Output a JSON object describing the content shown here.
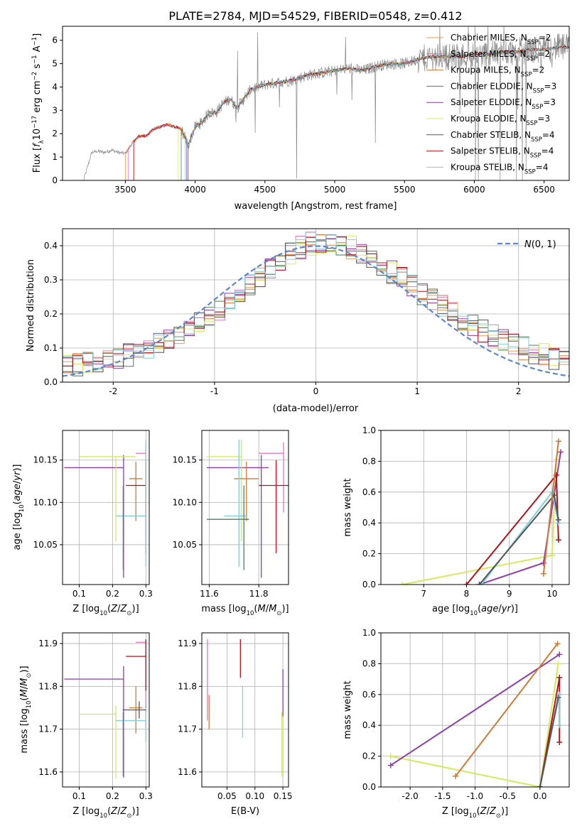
{
  "title": "PLATE=2784, MJD=54529, FIBERID=0548, z=0.412",
  "colors": {
    "chabrier_miles": "#ee9a4d",
    "salpeter_miles": "#e377c2",
    "kroupa_miles": "#d07a34",
    "chabrier_elodie": "#4e7f5a",
    "salpeter_elodie": "#8e3ea8",
    "kroupa_elodie": "#d4ea5a",
    "chabrier_stelib": "#555555",
    "salpeter_stelib": "#b0141a",
    "kroupa_stelib": "#7fcfdc",
    "data": "#888888",
    "normal": "#5b86d6",
    "grid": "#b0b0b0"
  },
  "chart_data": [
    {
      "id": "spectrum",
      "type": "line",
      "title": "PLATE=2784, MJD=54529, FIBERID=0548, z=0.412",
      "xlabel": "wavelength [Angstrom, rest frame]",
      "ylabel": "Flux [f_λ 10^-17 erg cm^-2 s^-1 A^-1]",
      "xlim": [
        3050,
        6680
      ],
      "ylim": [
        0,
        6.6
      ],
      "xticks": [
        3500,
        4000,
        4500,
        5000,
        5500,
        6000,
        6500
      ],
      "yticks": [
        0,
        1,
        2,
        3,
        4,
        5,
        6
      ],
      "grid": false,
      "legend_position": "top-right",
      "legend": [
        {
          "main": "Chabrier MILES, N",
          "sub": "SSP",
          "end": "=2",
          "color_key": "chabrier_miles"
        },
        {
          "main": "Salpeter MILES, N",
          "sub": "SSP",
          "end": "=2",
          "color_key": "salpeter_miles"
        },
        {
          "main": "Kroupa MILES, N",
          "sub": "SSP",
          "end": "=2",
          "color_key": "kroupa_miles"
        },
        {
          "main": "Chabrier ELODIE, N",
          "sub": "SSP",
          "end": "=3",
          "color_key": "chabrier_elodie"
        },
        {
          "main": "Salpeter ELODIE, N",
          "sub": "SSP",
          "end": "=3",
          "color_key": "salpeter_elodie"
        },
        {
          "main": "Kroupa ELODIE, N",
          "sub": "SSP",
          "end": "=3",
          "color_key": "kroupa_elodie"
        },
        {
          "main": "Chabrier STELIB, N",
          "sub": "SSP",
          "end": "=4",
          "color_key": "chabrier_stelib"
        },
        {
          "main": "Salpeter STELIB, N",
          "sub": "SSP",
          "end": "=4",
          "color_key": "salpeter_stelib"
        },
        {
          "main": "Kroupa STELIB, N",
          "sub": "SSP",
          "end": "=4",
          "color_key": "kroupa_stelib"
        }
      ],
      "continuum": [
        [
          3200,
          0
        ],
        [
          3260,
          1.2
        ],
        [
          3300,
          1.25
        ],
        [
          3350,
          1.2
        ],
        [
          3400,
          1.3
        ],
        [
          3450,
          1.2
        ],
        [
          3500,
          1.15
        ],
        [
          3550,
          1.6
        ],
        [
          3600,
          1.9
        ],
        [
          3650,
          1.9
        ],
        [
          3700,
          2.2
        ],
        [
          3750,
          2.3
        ],
        [
          3800,
          2.4
        ],
        [
          3850,
          2.3
        ],
        [
          3900,
          2.2
        ],
        [
          3950,
          1.5
        ],
        [
          4000,
          2.3
        ],
        [
          4050,
          2.5
        ],
        [
          4100,
          2.9
        ],
        [
          4150,
          2.9
        ],
        [
          4200,
          3.3
        ],
        [
          4250,
          3.5
        ],
        [
          4300,
          3.1
        ],
        [
          4350,
          3.5
        ],
        [
          4400,
          3.9
        ],
        [
          4500,
          4.1
        ],
        [
          4600,
          4.2
        ],
        [
          4700,
          4.3
        ],
        [
          4800,
          4.5
        ],
        [
          4900,
          4.6
        ],
        [
          5000,
          4.7
        ],
        [
          5100,
          4.8
        ],
        [
          5200,
          4.7
        ],
        [
          5300,
          4.9
        ],
        [
          5400,
          5.0
        ],
        [
          5500,
          5.0
        ],
        [
          5600,
          5.2
        ],
        [
          5700,
          5.3
        ],
        [
          5800,
          5.3
        ],
        [
          5900,
          5.3
        ],
        [
          6000,
          5.4
        ],
        [
          6100,
          5.4
        ],
        [
          6200,
          5.5
        ],
        [
          6300,
          5.5
        ],
        [
          6400,
          5.6
        ],
        [
          6500,
          5.6
        ],
        [
          6600,
          5.7
        ]
      ],
      "model_start_wavelength": [
        3500,
        3520,
        3560,
        3900,
        3940,
        3880,
        3950,
        3560,
        3930
      ]
    },
    {
      "id": "residuals",
      "type": "histogram",
      "xlabel": "(data-model)/error",
      "ylabel": "Normed distribution",
      "xlim": [
        -2.5,
        2.5
      ],
      "ylim": [
        0,
        0.45
      ],
      "xticks": [
        -2,
        -1,
        0,
        1,
        2
      ],
      "yticks": [
        0.0,
        0.1,
        0.2,
        0.3,
        0.4
      ],
      "bin_width": 0.1,
      "grid": true,
      "legend_position": "top-right",
      "legend": [
        {
          "label": "N(0, 1)",
          "color_key": "normal",
          "style": "dashed"
        }
      ]
    },
    {
      "id": "age_vs_z",
      "type": "errorbar",
      "xlabel": "Z [log10(Z/Z_sun)]",
      "ylabel": "age [log10(age/yr)]",
      "xlim": [
        0.05,
        0.31
      ],
      "ylim": [
        10.003,
        10.185
      ],
      "xticks": [
        0.1,
        0.2,
        0.3
      ],
      "yticks": [
        10.05,
        10.1,
        10.15
      ],
      "grid": true,
      "points": [
        {
          "color_key": "salpeter_elodie",
          "x": 0.233,
          "xerr": [
            0.178,
            0
          ],
          "y": 10.141,
          "yerr": [
            0.13,
            0.015
          ]
        },
        {
          "color_key": "kroupa_elodie",
          "x": 0.21,
          "xerr": [
            0.11,
            0.06
          ],
          "y": 10.154,
          "yerr": [
            0.1,
            0
          ]
        },
        {
          "color_key": "salpeter_miles",
          "x": 0.3,
          "xerr": [
            0.03,
            0
          ],
          "y": 10.158,
          "yerr": [
            0.07,
            0.013
          ]
        },
        {
          "color_key": "kroupa_miles",
          "x": 0.27,
          "xerr": [
            0.02,
            0.02
          ],
          "y": 10.128,
          "yerr": [
            0.05,
            0.02
          ]
        },
        {
          "color_key": "salpeter_stelib",
          "x": 0.3,
          "xerr": [
            0.06,
            0
          ],
          "y": 10.12,
          "yerr": [
            0.08,
            0.03
          ]
        },
        {
          "color_key": "kroupa_stelib",
          "x": 0.3,
          "xerr": [
            0.09,
            0
          ],
          "y": 10.084,
          "yerr": [
            0.06,
            0.09
          ]
        },
        {
          "color_key": "chabrier_elodie",
          "x": 0.232,
          "xerr": [
            0,
            0
          ],
          "y": 10.08,
          "yerr": [
            0.06,
            0.04
          ]
        }
      ]
    },
    {
      "id": "age_vs_mass",
      "type": "errorbar",
      "xlabel": "mass [log10(M/M_sun)]",
      "ylabel": "",
      "xlim": [
        11.57,
        11.92
      ],
      "ylim": [
        10.003,
        10.185
      ],
      "xticks": [
        11.6,
        11.8
      ],
      "yticks": [
        10.05,
        10.1,
        10.15
      ],
      "grid": true,
      "points": [
        {
          "color_key": "salpeter_elodie",
          "x": 11.81,
          "xerr": [
            0.22,
            0.03
          ],
          "y": 10.141,
          "yerr": [
            0.13,
            0.015
          ]
        },
        {
          "color_key": "kroupa_elodie",
          "x": 11.73,
          "xerr": [
            0.14,
            0
          ],
          "y": 10.154,
          "yerr": [
            0.1,
            0.02
          ]
        },
        {
          "color_key": "salpeter_miles",
          "x": 11.9,
          "xerr": [
            0.1,
            0
          ],
          "y": 10.158,
          "yerr": [
            0.07,
            0.013
          ]
        },
        {
          "color_key": "kroupa_miles",
          "x": 11.75,
          "xerr": [
            0.05,
            0.05
          ],
          "y": 10.128,
          "yerr": [
            0.05,
            0.02
          ]
        },
        {
          "color_key": "salpeter_stelib",
          "x": 11.87,
          "xerr": [
            0.07,
            0.05
          ],
          "y": 10.12,
          "yerr": [
            0.08,
            0.03
          ]
        },
        {
          "color_key": "kroupa_stelib",
          "x": 11.72,
          "xerr": [
            0.06,
            0.03
          ],
          "y": 10.084,
          "yerr": [
            0.06,
            0.09
          ]
        },
        {
          "color_key": "chabrier_elodie",
          "x": 11.74,
          "xerr": [
            0.15,
            0.02
          ],
          "y": 10.08,
          "yerr": [
            0.06,
            0.04
          ]
        }
      ]
    },
    {
      "id": "weight_vs_age",
      "type": "line",
      "xlabel": "age [log10(age/yr)]",
      "ylabel": "mass weight",
      "xlim": [
        6.0,
        10.4
      ],
      "ylim": [
        0,
        1.0
      ],
      "xticks": [
        7,
        8,
        9,
        10
      ],
      "yticks": [
        0.0,
        0.2,
        0.4,
        0.6,
        0.8,
        1.0
      ],
      "grid": true,
      "series": [
        {
          "color_key": "kroupa_elodie",
          "points": [
            [
              6.5,
              0.0
            ],
            [
              10.0,
              0.19
            ],
            [
              10.1,
              0.81
            ]
          ]
        },
        {
          "color_key": "salpeter_elodie",
          "points": [
            [
              8.3,
              0.0
            ],
            [
              9.8,
              0.14
            ],
            [
              10.2,
              0.86
            ]
          ]
        },
        {
          "color_key": "salpeter_stelib",
          "points": [
            [
              8.0,
              0.0
            ],
            [
              10.1,
              0.71
            ],
            [
              10.15,
              0.29
            ]
          ]
        },
        {
          "color_key": "kroupa_stelib",
          "points": [
            [
              8.35,
              0.0
            ],
            [
              10.0,
              0.6
            ],
            [
              10.15,
              0.4
            ]
          ]
        },
        {
          "color_key": "chabrier_stelib",
          "points": [
            [
              8.3,
              0.0
            ],
            [
              10.05,
              0.58
            ],
            [
              10.15,
              0.42
            ]
          ]
        },
        {
          "color_key": "kroupa_miles",
          "points": [
            [
              9.8,
              0.07
            ],
            [
              10.15,
              0.93
            ]
          ]
        }
      ]
    },
    {
      "id": "mass_vs_z",
      "type": "errorbar",
      "xlabel": "Z [log10(Z/Z_sun)]",
      "ylabel": "mass [log10(M/M_sun)]",
      "xlim": [
        0.05,
        0.31
      ],
      "ylim": [
        11.565,
        11.925
      ],
      "xticks": [
        0.1,
        0.2,
        0.3
      ],
      "yticks": [
        11.6,
        11.7,
        11.8,
        11.9
      ],
      "grid": true,
      "points": [
        {
          "color_key": "salpeter_elodie",
          "x": 0.233,
          "xerr": [
            0.178,
            0
          ],
          "y": 11.817,
          "yerr": [
            0.23,
            0.03
          ]
        },
        {
          "color_key": "kroupa_elodie",
          "x": 0.21,
          "xerr": [
            0.11,
            0
          ],
          "y": 11.735,
          "yerr": [
            0.15,
            0.02
          ]
        },
        {
          "color_key": "salpeter_miles",
          "x": 0.3,
          "xerr": [
            0.03,
            0
          ],
          "y": 11.903,
          "yerr": [
            0.2,
            0
          ]
        },
        {
          "color_key": "kroupa_miles",
          "x": 0.27,
          "xerr": [
            0.02,
            0.02
          ],
          "y": 11.75,
          "yerr": [
            0.06,
            0.05
          ]
        },
        {
          "color_key": "salpeter_stelib",
          "x": 0.3,
          "xerr": [
            0.06,
            0
          ],
          "y": 11.87,
          "yerr": [
            0.08,
            0.04
          ]
        },
        {
          "color_key": "kroupa_stelib",
          "x": 0.3,
          "xerr": [
            0.09,
            0
          ],
          "y": 11.72,
          "yerr": [
            0.05,
            0.03
          ]
        },
        {
          "color_key": "chabrier_elodie",
          "x": 0.232,
          "xerr": [
            0,
            0
          ],
          "y": 11.74,
          "yerr": [
            0.15,
            0
          ]
        },
        {
          "color_key": "chabrier_stelib",
          "x": 0.28,
          "xerr": [
            0.05,
            0.02
          ],
          "y": 11.745,
          "yerr": [
            0.02,
            0.02
          ]
        }
      ]
    },
    {
      "id": "mass_vs_ebv",
      "type": "errorbar",
      "xlabel": "E(B-V)",
      "ylabel": "",
      "xlim": [
        0.005,
        0.16
      ],
      "ylim": [
        11.565,
        11.925
      ],
      "xticks": [
        0.05,
        0.1,
        0.15
      ],
      "yticks": [
        11.6,
        11.7,
        11.8,
        11.9
      ],
      "grid": true,
      "points": [
        {
          "color_key": "salpeter_miles",
          "x": 0.015,
          "xerr": [
            0,
            0
          ],
          "y": 11.82,
          "yerr": [
            0.1,
            0.09
          ]
        },
        {
          "color_key": "kroupa_miles",
          "x": 0.018,
          "xerr": [
            0,
            0
          ],
          "y": 11.75,
          "yerr": [
            0.05,
            0.03
          ]
        },
        {
          "color_key": "salpeter_stelib",
          "x": 0.074,
          "xerr": [
            0,
            0
          ],
          "y": 11.87,
          "yerr": [
            0.05,
            0.04
          ]
        },
        {
          "color_key": "kroupa_stelib",
          "x": 0.078,
          "xerr": [
            0,
            0
          ],
          "y": 11.75,
          "yerr": [
            0.07,
            0.05
          ]
        },
        {
          "color_key": "salpeter_elodie",
          "x": 0.15,
          "xerr": [
            0,
            0
          ],
          "y": 11.79,
          "yerr": [
            0.06,
            0.05
          ]
        },
        {
          "color_key": "kroupa_elodie",
          "x": 0.148,
          "xerr": [
            0,
            0
          ],
          "y": 11.64,
          "yerr": [
            0.05,
            0.1
          ]
        }
      ]
    },
    {
      "id": "weight_vs_z",
      "type": "line",
      "xlabel": "Z [log10(Z/Z_sun)]",
      "ylabel": "mass weight",
      "xlim": [
        -2.45,
        0.45
      ],
      "ylim": [
        0,
        1.0
      ],
      "xticks": [
        -2.0,
        -1.5,
        -1.0,
        -0.5,
        0.0
      ],
      "yticks": [
        0.0,
        0.2,
        0.4,
        0.6,
        0.8,
        1.0
      ],
      "grid": true,
      "series": [
        {
          "color_key": "kroupa_elodie",
          "points": [
            [
              -2.3,
              0.2
            ],
            [
              0.0,
              0.0
            ],
            [
              0.28,
              0.8
            ]
          ]
        },
        {
          "color_key": "salpeter_elodie",
          "points": [
            [
              -2.3,
              0.14
            ],
            [
              0.3,
              0.86
            ]
          ]
        },
        {
          "color_key": "kroupa_miles",
          "points": [
            [
              -1.3,
              0.07
            ],
            [
              0.27,
              0.93
            ]
          ]
        },
        {
          "color_key": "salpeter_stelib",
          "points": [
            [
              0.0,
              0.0
            ],
            [
              0.3,
              0.71
            ],
            [
              0.3,
              0.29
            ]
          ]
        },
        {
          "color_key": "kroupa_stelib",
          "points": [
            [
              0.0,
              0.0
            ],
            [
              0.3,
              0.6
            ],
            [
              0.3,
              0.4
            ]
          ]
        },
        {
          "color_key": "chabrier_stelib",
          "points": [
            [
              0.0,
              0.0
            ],
            [
              0.28,
              0.58
            ]
          ]
        }
      ]
    }
  ]
}
